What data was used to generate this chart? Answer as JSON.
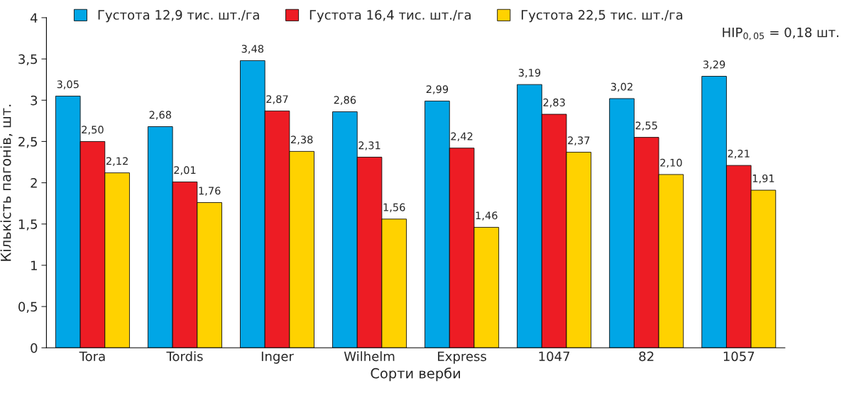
{
  "chart_data": {
    "type": "bar",
    "xlabel": "Сорти верби",
    "ylabel": "Кількість пагонів, шт.",
    "categories": [
      "Tora",
      "Tordis",
      "Inger",
      "Wilhelm",
      "Express",
      "1047",
      "82",
      "1057"
    ],
    "series": [
      {
        "name": "Густота 12,9 тис. шт./га",
        "color": "#00a6e6",
        "values": [
          3.05,
          2.68,
          3.48,
          2.86,
          2.99,
          3.19,
          3.02,
          3.29
        ],
        "value_labels": [
          "3,05",
          "2,68",
          "3,48",
          "2,86",
          "2,99",
          "3,19",
          "3,02",
          "3,29"
        ]
      },
      {
        "name": "Густота 16,4 тис. шт./га",
        "color": "#ed1c24",
        "values": [
          2.5,
          2.01,
          2.87,
          2.31,
          2.42,
          2.83,
          2.55,
          2.21
        ],
        "value_labels": [
          "2,50",
          "2,01",
          "2,87",
          "2,31",
          "2,42",
          "2,83",
          "2,55",
          "2,21"
        ]
      },
      {
        "name": "Густота 22,5 тис. шт./га",
        "color": "#ffd200",
        "values": [
          2.12,
          1.76,
          2.38,
          1.56,
          1.46,
          2.37,
          2.1,
          1.91
        ],
        "value_labels": [
          "2,12",
          "1,76",
          "2,38",
          "1,56",
          "1,46",
          "2,37",
          "2,10",
          "1,91"
        ]
      }
    ],
    "ylim": [
      0,
      4
    ],
    "yticks": [
      0,
      {
        "value": 0.5,
        "label": "0,5"
      },
      1,
      {
        "value": 1.5,
        "label": "1,5"
      },
      2,
      {
        "value": 2.5,
        "label": "2,5"
      },
      3,
      {
        "value": 3.5,
        "label": "3,5"
      },
      4
    ],
    "annotations": [
      "НІР$_{0,05}$ = 0,18 шт."
    ],
    "legend": "top",
    "grid": false
  }
}
